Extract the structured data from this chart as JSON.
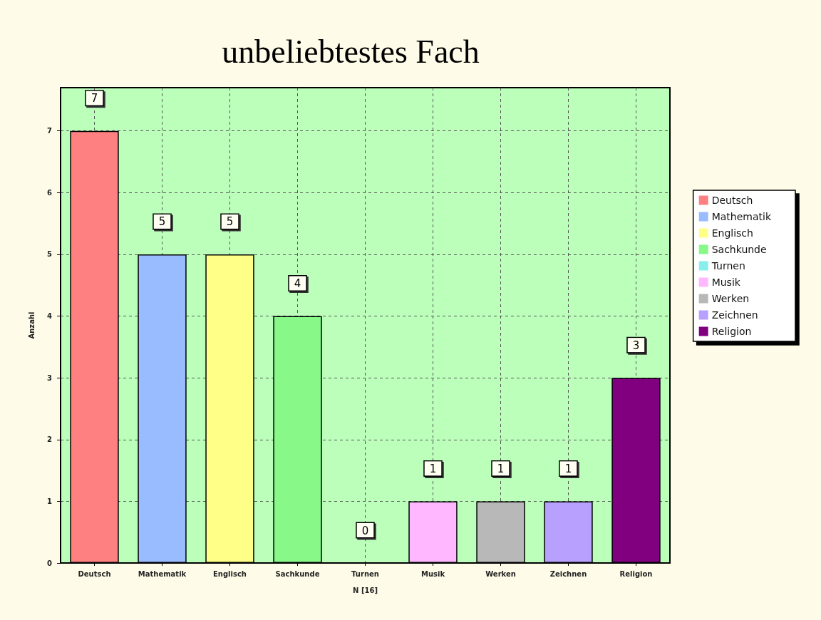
{
  "chart_data": {
    "type": "bar",
    "title": "unbeliebtestes Fach",
    "xlabel": "N [16]",
    "ylabel": "Anzahl",
    "categories": [
      "Deutsch",
      "Mathematik",
      "Englisch",
      "Sachkunde",
      "Turnen",
      "Musik",
      "Werken",
      "Zeichnen",
      "Religion"
    ],
    "series": [
      {
        "name": "Deutsch",
        "color": "#ff8080",
        "values": [
          7,
          null,
          null,
          null,
          null,
          null,
          null,
          null,
          null
        ]
      },
      {
        "name": "Mathematik",
        "color": "#99bbff",
        "values": [
          null,
          5,
          null,
          null,
          null,
          null,
          null,
          null,
          null
        ]
      },
      {
        "name": "Englisch",
        "color": "#ffff88",
        "values": [
          null,
          null,
          5,
          null,
          null,
          null,
          null,
          null,
          null
        ]
      },
      {
        "name": "Sachkunde",
        "color": "#88f888",
        "values": [
          null,
          null,
          null,
          4,
          null,
          null,
          null,
          null,
          null
        ]
      },
      {
        "name": "Turnen",
        "color": "#88eeee",
        "values": [
          null,
          null,
          null,
          null,
          0,
          null,
          null,
          null,
          null
        ]
      },
      {
        "name": "Musik",
        "color": "#ffb8ff",
        "values": [
          null,
          null,
          null,
          null,
          null,
          1,
          null,
          null,
          null
        ]
      },
      {
        "name": "Werken",
        "color": "#b8b8b8",
        "values": [
          null,
          null,
          null,
          null,
          null,
          null,
          1,
          null,
          null
        ]
      },
      {
        "name": "Zeichnen",
        "color": "#b8a0ff",
        "values": [
          null,
          null,
          null,
          null,
          null,
          null,
          null,
          1,
          null
        ]
      },
      {
        "name": "Religion",
        "color": "#800080",
        "values": [
          null,
          null,
          null,
          null,
          null,
          null,
          null,
          null,
          3
        ]
      }
    ],
    "stacked": true,
    "ylim": [
      0,
      7.7
    ],
    "yticks": [
      0,
      1,
      2,
      3,
      4,
      5,
      6,
      7
    ],
    "grid": true,
    "legend": "right",
    "data_labels": true
  }
}
